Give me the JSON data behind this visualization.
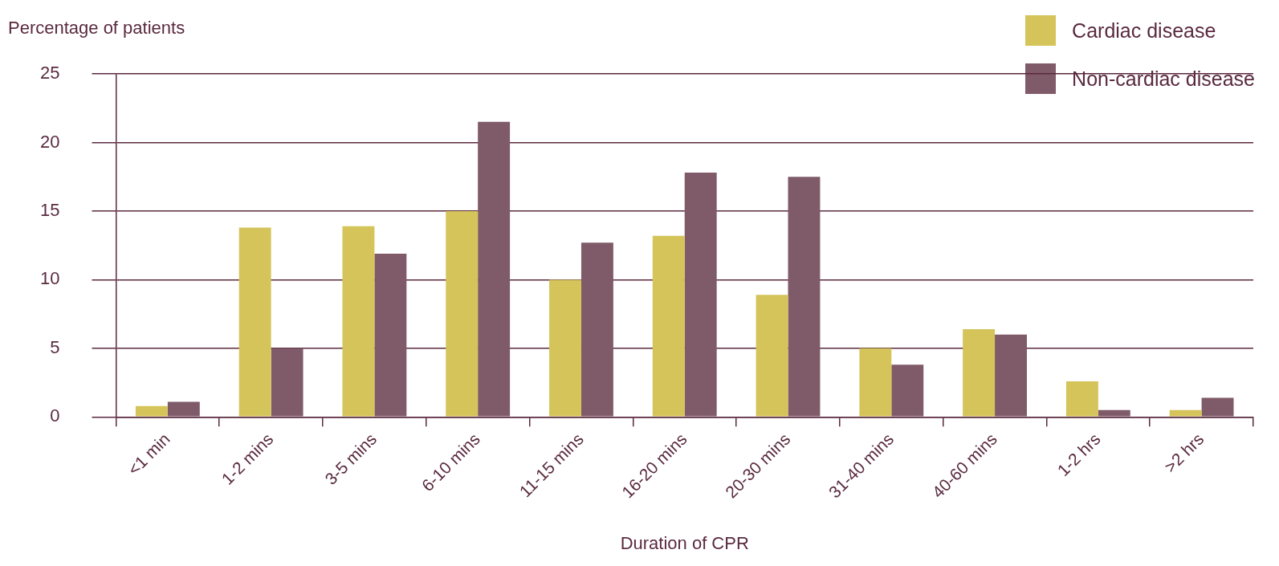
{
  "chart_data": {
    "type": "bar",
    "xlabel": "Duration of CPR",
    "ylabel": "Percentage of patients",
    "categories": [
      "<1 min",
      "1-2 mins",
      "3-5 mins",
      "6-10 mins",
      "11-15 mins",
      "16-20 mins",
      "20-30 mins",
      "31-40 mins",
      "40-60 mins",
      "1-2 hrs",
      ">2 hrs"
    ],
    "series": [
      {
        "name": "Cardiac disease",
        "color": "#d4c45a",
        "values": [
          0.8,
          13.8,
          13.9,
          15.0,
          10.0,
          13.2,
          8.9,
          5.0,
          6.4,
          2.6,
          0.5
        ]
      },
      {
        "name": "Non-cardiac disease",
        "color": "#7f5a68",
        "values": [
          1.1,
          5.0,
          11.9,
          21.5,
          12.7,
          17.8,
          17.5,
          3.8,
          6.0,
          0.5,
          1.4
        ]
      }
    ],
    "ylim": [
      0,
      25
    ],
    "yticks": [
      0,
      5,
      10,
      15,
      20,
      25
    ],
    "grid": "y",
    "legend": "top right"
  }
}
